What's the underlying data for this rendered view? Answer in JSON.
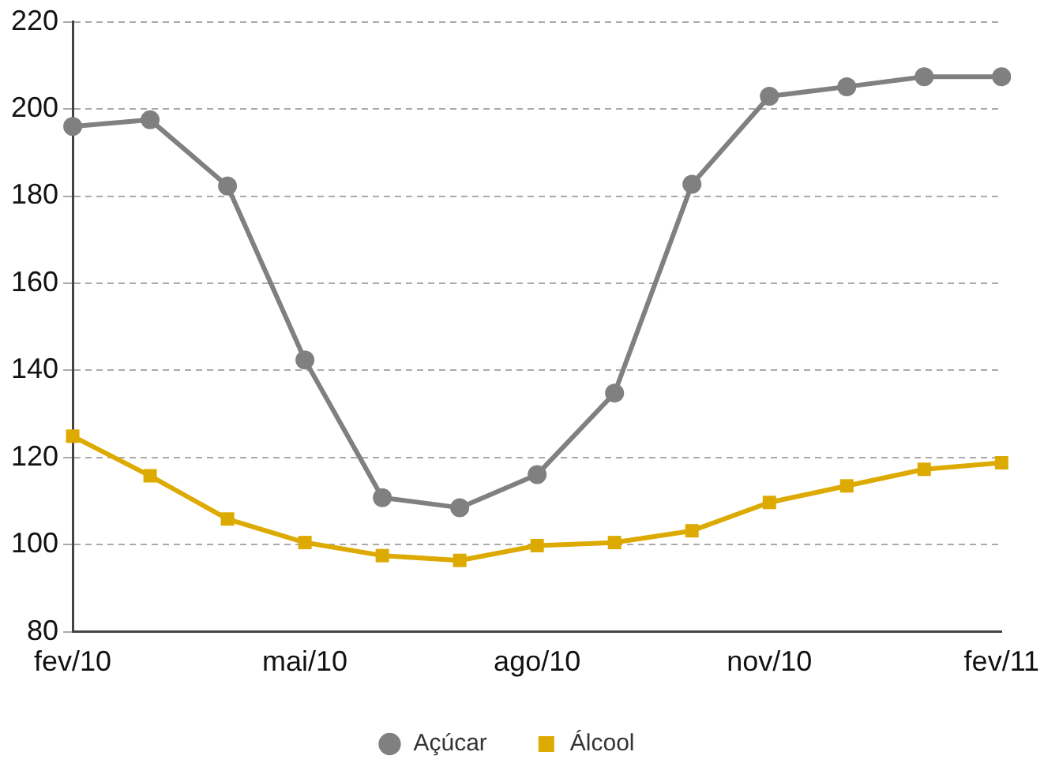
{
  "chart_data": {
    "type": "line",
    "categories": [
      "fev/10",
      null,
      null,
      "mai/10",
      null,
      null,
      "ago/10",
      null,
      null,
      "nov/10",
      null,
      null,
      "fev/11"
    ],
    "series": [
      {
        "name": "Açúcar",
        "color": "#808080",
        "marker": "circle",
        "values": [
          196.0,
          197.5,
          182.3,
          142.4,
          110.8,
          108.5,
          116.1,
          134.8,
          182.7,
          202.9,
          205.1,
          207.4,
          207.4
        ]
      },
      {
        "name": "Álcool",
        "color": "#dcaa00",
        "marker": "square",
        "values": [
          124.9,
          115.8,
          105.9,
          100.5,
          97.5,
          96.4,
          99.8,
          100.5,
          103.2,
          109.7,
          113.5,
          117.3,
          118.8
        ]
      }
    ],
    "ylim": [
      80,
      220
    ],
    "yticks": [
      80,
      100,
      120,
      140,
      160,
      180,
      200,
      220
    ],
    "grid": "y",
    "legend": "bottom",
    "line_style": "solid"
  }
}
